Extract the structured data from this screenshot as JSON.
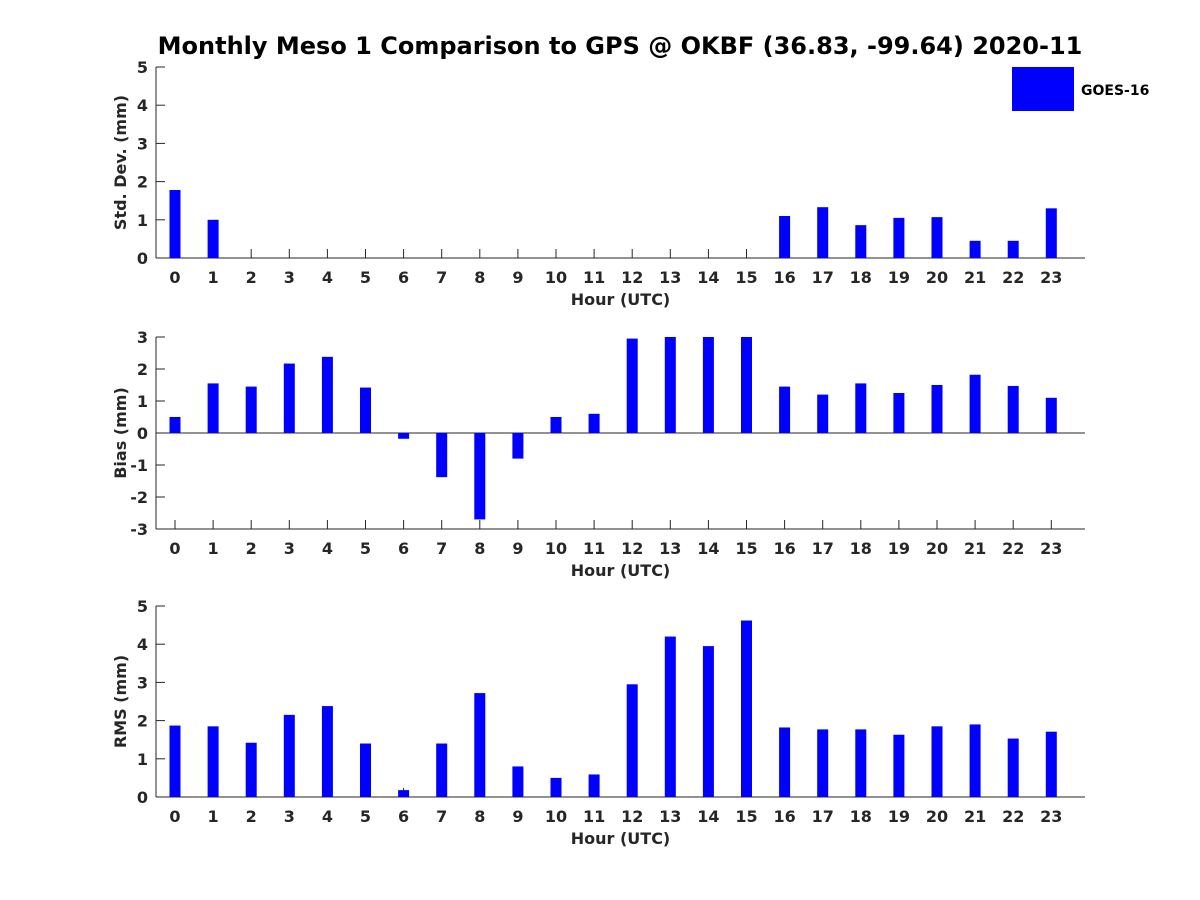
{
  "title": "Monthly Meso 1 Comparison to GPS @ OKBF (36.83, -99.64) 2020-11",
  "legend": {
    "label": "GOES-16",
    "color": "#0000ff",
    "placement": "top-right"
  },
  "chart_data": [
    {
      "type": "bar",
      "name": "std-dev",
      "ylabel": "Std. Dev. (mm)",
      "xlabel": "Hour (UTC)",
      "ylim": [
        0,
        5
      ],
      "yticks": [
        0,
        1,
        2,
        3,
        4,
        5
      ],
      "categories": [
        "0",
        "1",
        "2",
        "3",
        "4",
        "5",
        "6",
        "7",
        "8",
        "9",
        "10",
        "11",
        "12",
        "13",
        "14",
        "15",
        "16",
        "17",
        "18",
        "19",
        "20",
        "21",
        "22",
        "23"
      ],
      "series": [
        {
          "name": "GOES-16",
          "values": [
            1.78,
            1.0,
            0,
            0,
            0,
            0,
            0,
            0,
            0,
            0,
            0,
            0,
            0,
            0,
            0,
            0,
            1.1,
            1.33,
            0.86,
            1.05,
            1.07,
            0.45,
            0.45,
            1.3
          ]
        }
      ]
    },
    {
      "type": "bar",
      "name": "bias",
      "ylabel": "Bias (mm)",
      "xlabel": "Hour (UTC)",
      "ylim": [
        -3,
        3
      ],
      "yticks": [
        -3,
        -2,
        -1,
        0,
        1,
        2,
        3
      ],
      "categories": [
        "0",
        "1",
        "2",
        "3",
        "4",
        "5",
        "6",
        "7",
        "8",
        "9",
        "10",
        "11",
        "12",
        "13",
        "14",
        "15",
        "16",
        "17",
        "18",
        "19",
        "20",
        "21",
        "22",
        "23"
      ],
      "series": [
        {
          "name": "GOES-16",
          "values": [
            0.5,
            1.55,
            1.45,
            2.17,
            2.38,
            1.42,
            -0.18,
            -1.38,
            -2.7,
            -0.8,
            0.5,
            0.6,
            2.95,
            3.0,
            3.0,
            3.0,
            1.45,
            1.2,
            1.55,
            1.25,
            1.5,
            1.82,
            1.47,
            1.1
          ]
        }
      ]
    },
    {
      "type": "bar",
      "name": "rms",
      "ylabel": "RMS (mm)",
      "xlabel": "Hour (UTC)",
      "ylim": [
        0,
        5
      ],
      "yticks": [
        0,
        1,
        2,
        3,
        4,
        5
      ],
      "categories": [
        "0",
        "1",
        "2",
        "3",
        "4",
        "5",
        "6",
        "7",
        "8",
        "9",
        "10",
        "11",
        "12",
        "13",
        "14",
        "15",
        "16",
        "17",
        "18",
        "19",
        "20",
        "21",
        "22",
        "23"
      ],
      "series": [
        {
          "name": "GOES-16",
          "values": [
            1.87,
            1.85,
            1.42,
            2.15,
            2.38,
            1.4,
            0.18,
            1.4,
            2.72,
            0.8,
            0.5,
            0.59,
            2.95,
            4.2,
            3.95,
            4.62,
            1.82,
            1.77,
            1.77,
            1.63,
            1.85,
            1.9,
            1.53,
            1.71
          ]
        }
      ]
    }
  ]
}
